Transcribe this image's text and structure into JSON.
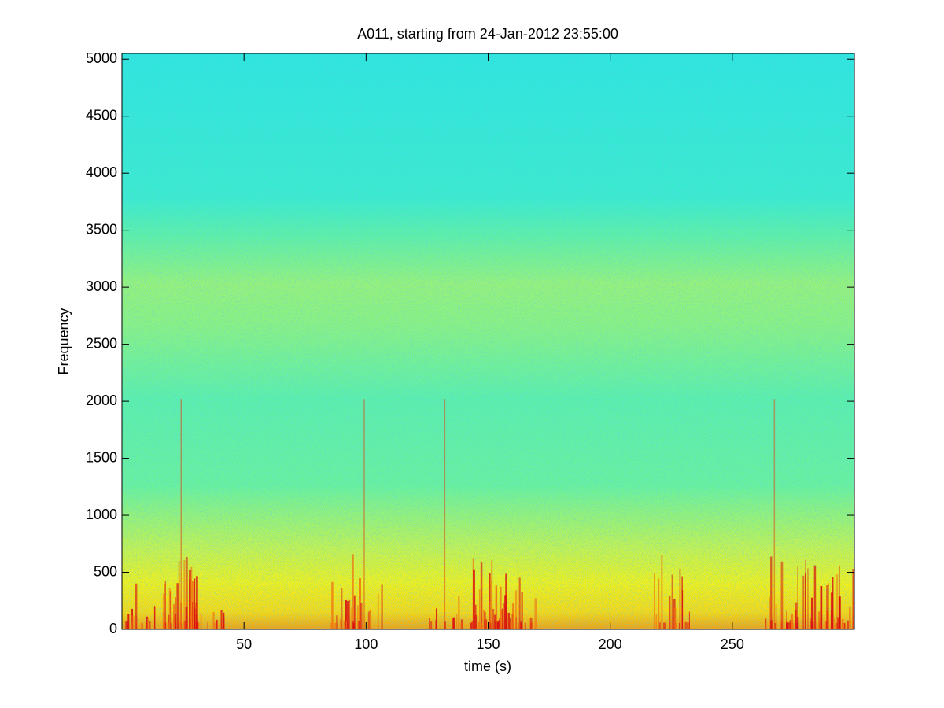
{
  "chart_data": {
    "type": "spectrogram",
    "title": "A011, starting from 24-Jan-2012 23:55:00",
    "x_label": "time (s)",
    "y_label": "Frequency",
    "xlim": [
      0,
      300
    ],
    "ylim": [
      0,
      5050
    ],
    "xticks": [
      50,
      100,
      150,
      200,
      250
    ],
    "yticks": [
      0,
      500,
      1000,
      1500,
      2000,
      2500,
      3000,
      3500,
      4000,
      4500,
      5000
    ],
    "colormap": "jet"
  }
}
